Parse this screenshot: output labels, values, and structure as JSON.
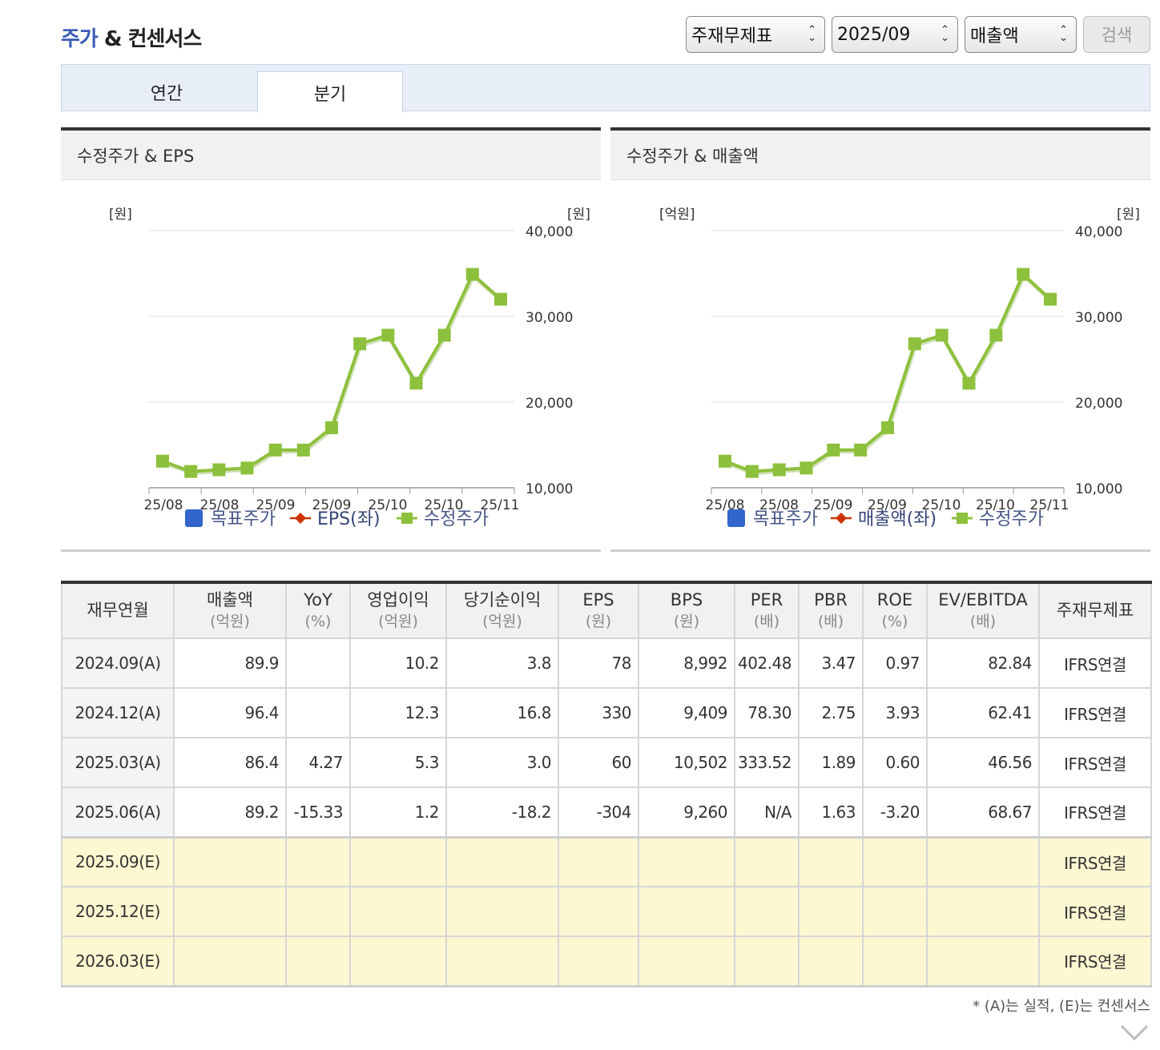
{
  "title": {
    "accent": "주가",
    "rest": " & 컨센서스"
  },
  "controls": {
    "report_type": "주재무제표",
    "period": "2025/09",
    "metric": "매출액",
    "search_label": "검색"
  },
  "tabs": [
    {
      "label": "연간"
    },
    {
      "label": "분기"
    }
  ],
  "active_tab": "분기",
  "charts": {
    "left_title": "수정주가 & EPS",
    "right_title": "수정주가 & 매출액",
    "left_unit_left": "[원]",
    "left_unit_right": "[원]",
    "right_unit_left": "[억원]",
    "right_unit_right": "[원]"
  },
  "chart_data": [
    {
      "type": "line",
      "title": "수정주가 & EPS",
      "x_tick_labels": [
        "25/08",
        "25/08",
        "25/09",
        "25/09",
        "25/10",
        "25/10",
        "25/11"
      ],
      "y_right_ticks": [
        "10,000",
        "20,000",
        "30,000",
        "40,000"
      ],
      "y_right_range": [
        10000,
        40000
      ],
      "legend": [
        "목표주가",
        "EPS(좌)",
        "수정주가"
      ],
      "legend_colors": {
        "목표주가": "#3366cc",
        "EPS(좌)": "#cc3300",
        "수정주가": "#8dc03c"
      },
      "series": [
        {
          "name": "수정주가",
          "values": [
            13100,
            11900,
            12100,
            12300,
            14400,
            14400,
            17000,
            26800,
            27800,
            22200,
            27800,
            34900,
            32000
          ]
        }
      ]
    },
    {
      "type": "line",
      "title": "수정주가 & 매출액",
      "x_tick_labels": [
        "25/08",
        "25/08",
        "25/09",
        "25/09",
        "25/10",
        "25/10",
        "25/11"
      ],
      "y_right_ticks": [
        "10,000",
        "20,000",
        "30,000",
        "40,000"
      ],
      "y_right_range": [
        10000,
        40000
      ],
      "legend": [
        "목표주가",
        "매출액(좌)",
        "수정주가"
      ],
      "legend_colors": {
        "목표주가": "#3366cc",
        "매출액(좌)": "#cc3300",
        "수정주가": "#8dc03c"
      },
      "series": [
        {
          "name": "수정주가",
          "values": [
            13100,
            11900,
            12100,
            12300,
            14400,
            14400,
            17000,
            26800,
            27800,
            22200,
            27800,
            34900,
            32000
          ]
        }
      ]
    }
  ],
  "table": {
    "headers": [
      {
        "label": "재무연월",
        "unit": ""
      },
      {
        "label": "매출액",
        "unit": "(억원)"
      },
      {
        "label": "YoY",
        "unit": "(%)"
      },
      {
        "label": "영업이익",
        "unit": "(억원)"
      },
      {
        "label": "당기순이익",
        "unit": "(억원)"
      },
      {
        "label": "EPS",
        "unit": "(원)"
      },
      {
        "label": "BPS",
        "unit": "(원)"
      },
      {
        "label": "PER",
        "unit": "(배)"
      },
      {
        "label": "PBR",
        "unit": "(배)"
      },
      {
        "label": "ROE",
        "unit": "(%)"
      },
      {
        "label": "EV/EBITDA",
        "unit": "(배)"
      },
      {
        "label": "주재무제표",
        "unit": ""
      }
    ],
    "rows": [
      [
        "2024.09(A)",
        "89.9",
        "",
        "10.2",
        "3.8",
        "78",
        "8,992",
        "402.48",
        "3.47",
        "0.97",
        "82.84",
        "IFRS연결"
      ],
      [
        "2024.12(A)",
        "96.4",
        "",
        "12.3",
        "16.8",
        "330",
        "9,409",
        "78.30",
        "2.75",
        "3.93",
        "62.41",
        "IFRS연결"
      ],
      [
        "2025.03(A)",
        "86.4",
        "4.27",
        "5.3",
        "3.0",
        "60",
        "10,502",
        "333.52",
        "1.89",
        "0.60",
        "46.56",
        "IFRS연결"
      ],
      [
        "2025.06(A)",
        "89.2",
        "-15.33",
        "1.2",
        "-18.2",
        "-304",
        "9,260",
        "N/A",
        "1.63",
        "-3.20",
        "68.67",
        "IFRS연결"
      ]
    ],
    "estimate_rows": [
      [
        "2025.09(E)",
        "",
        "",
        "",
        "",
        "",
        "",
        "",
        "",
        "",
        "",
        "IFRS연결"
      ],
      [
        "2025.12(E)",
        "",
        "",
        "",
        "",
        "",
        "",
        "",
        "",
        "",
        "",
        "IFRS연결"
      ],
      [
        "2026.03(E)",
        "",
        "",
        "",
        "",
        "",
        "",
        "",
        "",
        "",
        "",
        "IFRS연결"
      ]
    ]
  },
  "footnote": "* (A)는 실적, (E)는 컨센서스",
  "icons": {
    "select_arrows": "updown-chevron-icon",
    "expand": "chevron-down-icon"
  }
}
